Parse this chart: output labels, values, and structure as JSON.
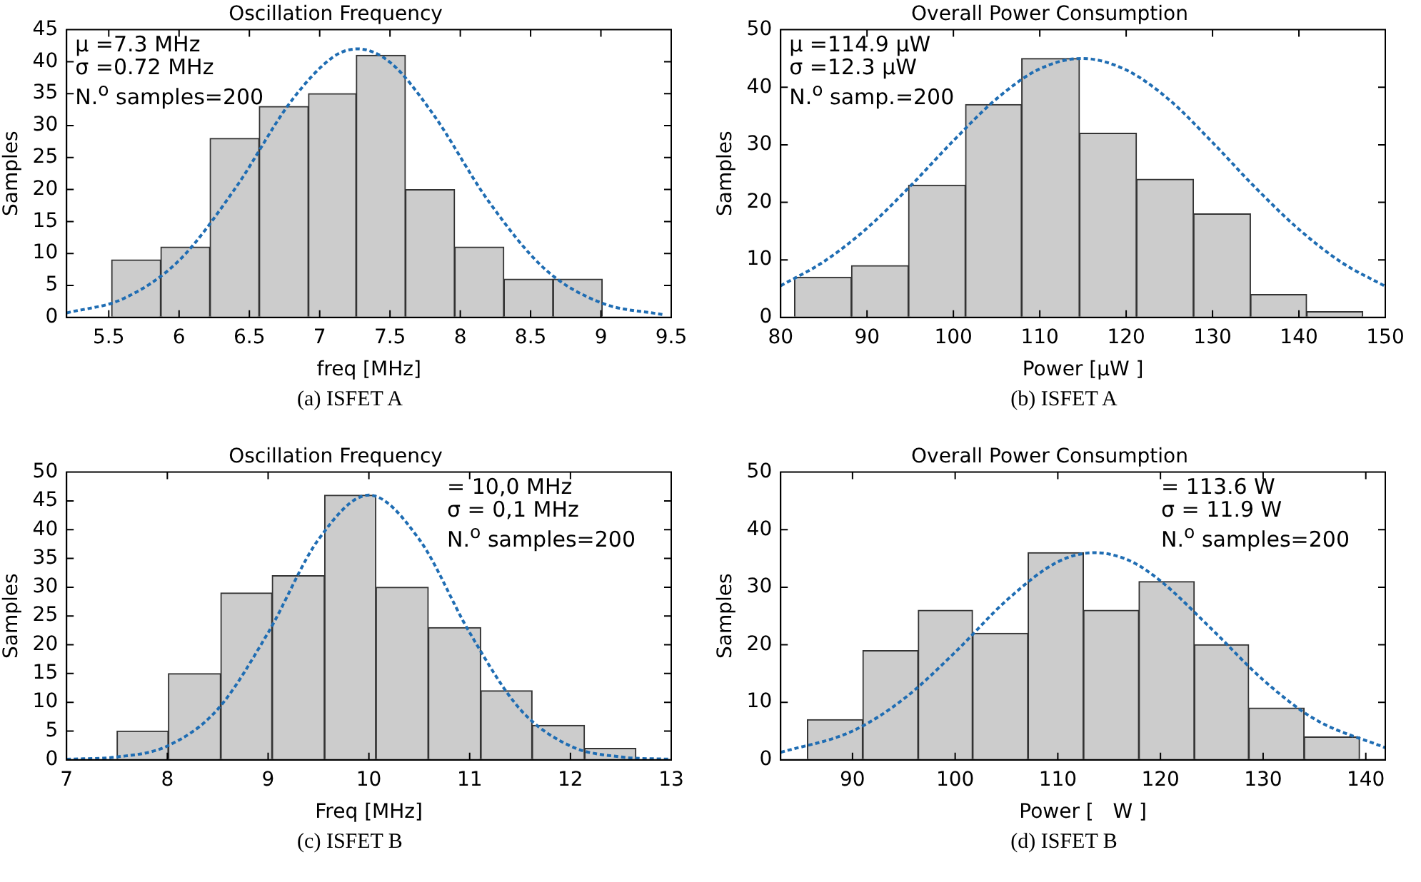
{
  "chart_data": [
    {
      "type": "histogram",
      "title": "Oscillation Frequency",
      "xlabel": "freq [MHz]",
      "ylabel": "Samples",
      "color": "#cccccc",
      "bins": [
        5.52,
        5.87,
        6.22,
        6.57,
        6.92,
        7.26,
        7.61,
        7.96,
        8.31,
        8.66,
        9.01
      ],
      "values": [
        9,
        11,
        28,
        33,
        35,
        41,
        20,
        11,
        6,
        6
      ],
      "series": [
        {
          "type": "line",
          "line_style": "dashed",
          "color": "#1f6db3",
          "x": [
            5.2,
            5.6,
            6.0,
            6.4,
            6.8,
            7.1,
            7.27,
            7.5,
            7.8,
            8.2,
            8.6,
            9.0,
            9.45
          ],
          "values": [
            0.7,
            2.9,
            8.9,
            20.2,
            33.9,
            40.8,
            42,
            39.9,
            32.0,
            18.2,
            7.6,
            2.3,
            0.4
          ]
        }
      ],
      "xlim": [
        5.2,
        9.5
      ],
      "xticks": [
        5.5,
        6,
        6.5,
        7,
        7.5,
        8,
        8.5,
        9,
        9.5
      ],
      "ylim": [
        0,
        45
      ],
      "yticks": [
        0,
        5,
        10,
        15,
        20,
        25,
        30,
        35,
        40,
        45
      ],
      "grid": false,
      "marker": "none",
      "annotations": [
        "μ =7.3 MHz",
        "σ =0.72 MHz",
        "N.$^{o}$ samples=200",
        "(a)  ISFET A"
      ]
    },
    {
      "type": "histogram",
      "title": "Overall Power Consumption",
      "xlabel": "Power [μW ]",
      "ylabel": "Samples",
      "color": "#cccccc",
      "bins": [
        81.6,
        88.2,
        94.8,
        101.4,
        107.9,
        114.6,
        121.2,
        127.8,
        134.4,
        140.9,
        147.4
      ],
      "values": [
        7,
        9,
        23,
        37,
        45,
        32,
        24,
        18,
        4,
        1
      ],
      "series": [
        {
          "type": "line",
          "line_style": "dashed",
          "color": "#1f6db3",
          "x": [
            80,
            85,
            90,
            95,
            100,
            105,
            110,
            114.9,
            120,
            125,
            130,
            135,
            140,
            145,
            150
          ],
          "values": [
            5.5,
            9.7,
            15.5,
            22.8,
            30.7,
            38.0,
            43.2,
            45,
            43.0,
            37.8,
            30.4,
            22.5,
            15.3,
            9.5,
            5.4
          ]
        }
      ],
      "xlim": [
        80,
        150
      ],
      "xticks": [
        80,
        90,
        100,
        110,
        120,
        130,
        140,
        150
      ],
      "ylim": [
        0,
        50
      ],
      "yticks": [
        0,
        10,
        20,
        30,
        40,
        50
      ],
      "grid": false,
      "marker": "none",
      "annotations": [
        "μ =114.9 μW",
        "σ =12.3 μW",
        "N.$^{o}$ samp.=200",
        "(b)  ISFET A"
      ]
    },
    {
      "type": "histogram",
      "title": "Oscillation Frequency",
      "xlabel": "Freq [MHz]",
      "ylabel": "Samples",
      "color": "#cccccc",
      "bins": [
        7.5,
        8.01,
        8.53,
        9.04,
        9.56,
        10.07,
        10.59,
        11.11,
        11.62,
        12.14,
        12.65
      ],
      "values": [
        5,
        15,
        29,
        32,
        46,
        30,
        23,
        12,
        6,
        2
      ],
      "series": [
        {
          "type": "line",
          "line_style": "dashed",
          "color": "#1f6db3",
          "x": [
            7,
            7.5,
            8,
            8.5,
            9,
            9.5,
            10,
            10.5,
            11,
            11.5,
            12,
            12.5,
            13
          ],
          "values": [
            0.1,
            0.5,
            2.4,
            8.8,
            22.1,
            38.3,
            46,
            38.3,
            22.1,
            8.8,
            2.4,
            0.5,
            0.1
          ]
        }
      ],
      "xlim": [
        7,
        13
      ],
      "xticks": [
        7,
        8,
        9,
        10,
        11,
        12,
        13
      ],
      "ylim": [
        0,
        50
      ],
      "yticks": [
        0,
        5,
        10,
        15,
        20,
        25,
        30,
        35,
        40,
        45,
        50
      ],
      "grid": false,
      "marker": "none",
      "annotations": [
        "= 10,0 MHz",
        "σ = 0,1 MHz",
        "N.$^{o}$ samples=200",
        "(c)  ISFET B"
      ]
    },
    {
      "type": "histogram",
      "title": "Overall Power Consumption",
      "xlabel": "Power [   W ]",
      "ylabel": "Samples",
      "color": "#cccccc",
      "bins": [
        85.6,
        91.0,
        96.4,
        101.7,
        107.1,
        112.5,
        117.9,
        123.3,
        128.6,
        134.0,
        139.4
      ],
      "values": [
        7,
        19,
        26,
        22,
        36,
        26,
        31,
        20,
        9,
        4
      ],
      "series": [
        {
          "type": "line",
          "line_style": "dashed",
          "color": "#1f6db3",
          "x": [
            83,
            90,
            95,
            100,
            105,
            110,
            113.6,
            117,
            120,
            125,
            130,
            135,
            141.9
          ],
          "values": [
            1.3,
            5.0,
            10.6,
            18.7,
            27.7,
            34.4,
            36,
            34.6,
            31.1,
            22.7,
            13.9,
            7.1,
            2.1
          ]
        }
      ],
      "xlim": [
        83,
        141.9
      ],
      "xticks": [
        90,
        100,
        110,
        120,
        130,
        140
      ],
      "ylim": [
        0,
        50
      ],
      "yticks": [
        0,
        10,
        20,
        30,
        40,
        50
      ],
      "grid": false,
      "marker": "none",
      "annotations": [
        "= 113.6   W",
        "σ = 11.9   W",
        "N.$^{o}$ samples=200",
        "(d)  ISFET B"
      ]
    }
  ]
}
